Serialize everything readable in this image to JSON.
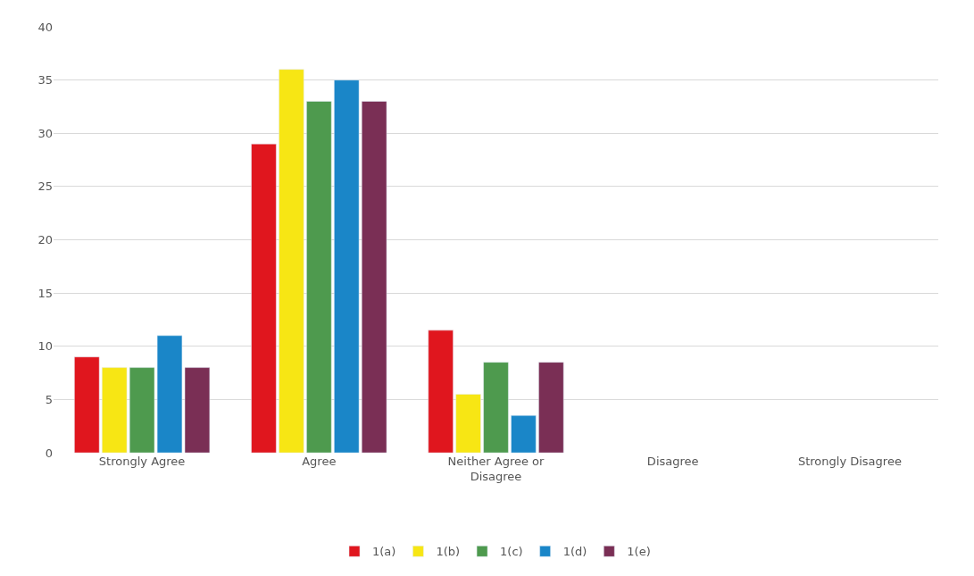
{
  "chart_data": {
    "type": "bar",
    "categories": [
      "Strongly Agree",
      "Agree",
      "Neither Agree or Disagree",
      "Disagree",
      "Strongly Disagree"
    ],
    "series": [
      {
        "name": "1(a)",
        "color": "#e0161e",
        "values": [
          9,
          29,
          11.5,
          null,
          null
        ]
      },
      {
        "name": "1(b)",
        "color": "#f7e614",
        "values": [
          8,
          36,
          5.5,
          null,
          null
        ]
      },
      {
        "name": "1(c)",
        "color": "#4e9a4e",
        "values": [
          8,
          33,
          8.5,
          null,
          null
        ]
      },
      {
        "name": "1(d)",
        "color": "#1a86c8",
        "values": [
          11,
          35,
          3.5,
          null,
          null
        ]
      },
      {
        "name": "1(e)",
        "color": "#7a2f55",
        "values": [
          8,
          33,
          8.5,
          null,
          null
        ]
      }
    ],
    "ylim": [
      0,
      40
    ],
    "yticks": [
      0,
      5,
      10,
      15,
      20,
      25,
      30,
      35,
      40
    ],
    "grid": "y",
    "legend": "bottom"
  }
}
